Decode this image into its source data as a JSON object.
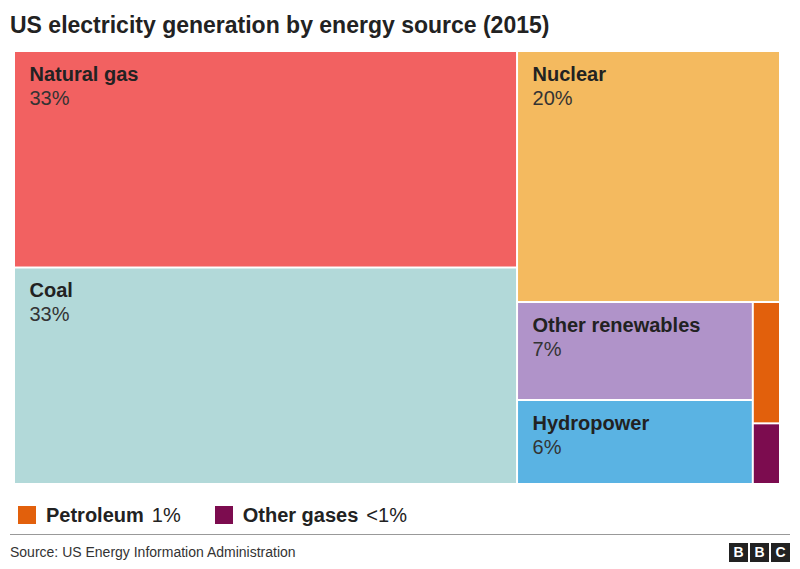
{
  "chart_data": {
    "type": "treemap",
    "title": "US electricity generation by energy source (2015)",
    "categories": [
      "Natural gas",
      "Coal",
      "Nuclear",
      "Other renewables",
      "Hydropower",
      "Petroleum",
      "Other gases"
    ],
    "values": [
      33,
      33,
      20,
      7,
      6,
      1,
      0.5
    ],
    "value_labels": [
      "33%",
      "33%",
      "20%",
      "7%",
      "6%",
      "1%",
      "<1%"
    ],
    "colors": [
      "#f26161",
      "#b2d9d9",
      "#f4ba5f",
      "#b093c9",
      "#5ab3e3",
      "#e2600c",
      "#7c0c4f"
    ],
    "data_labels": true,
    "source": "Source: US Energy Information Administration",
    "logo": "BBC"
  }
}
